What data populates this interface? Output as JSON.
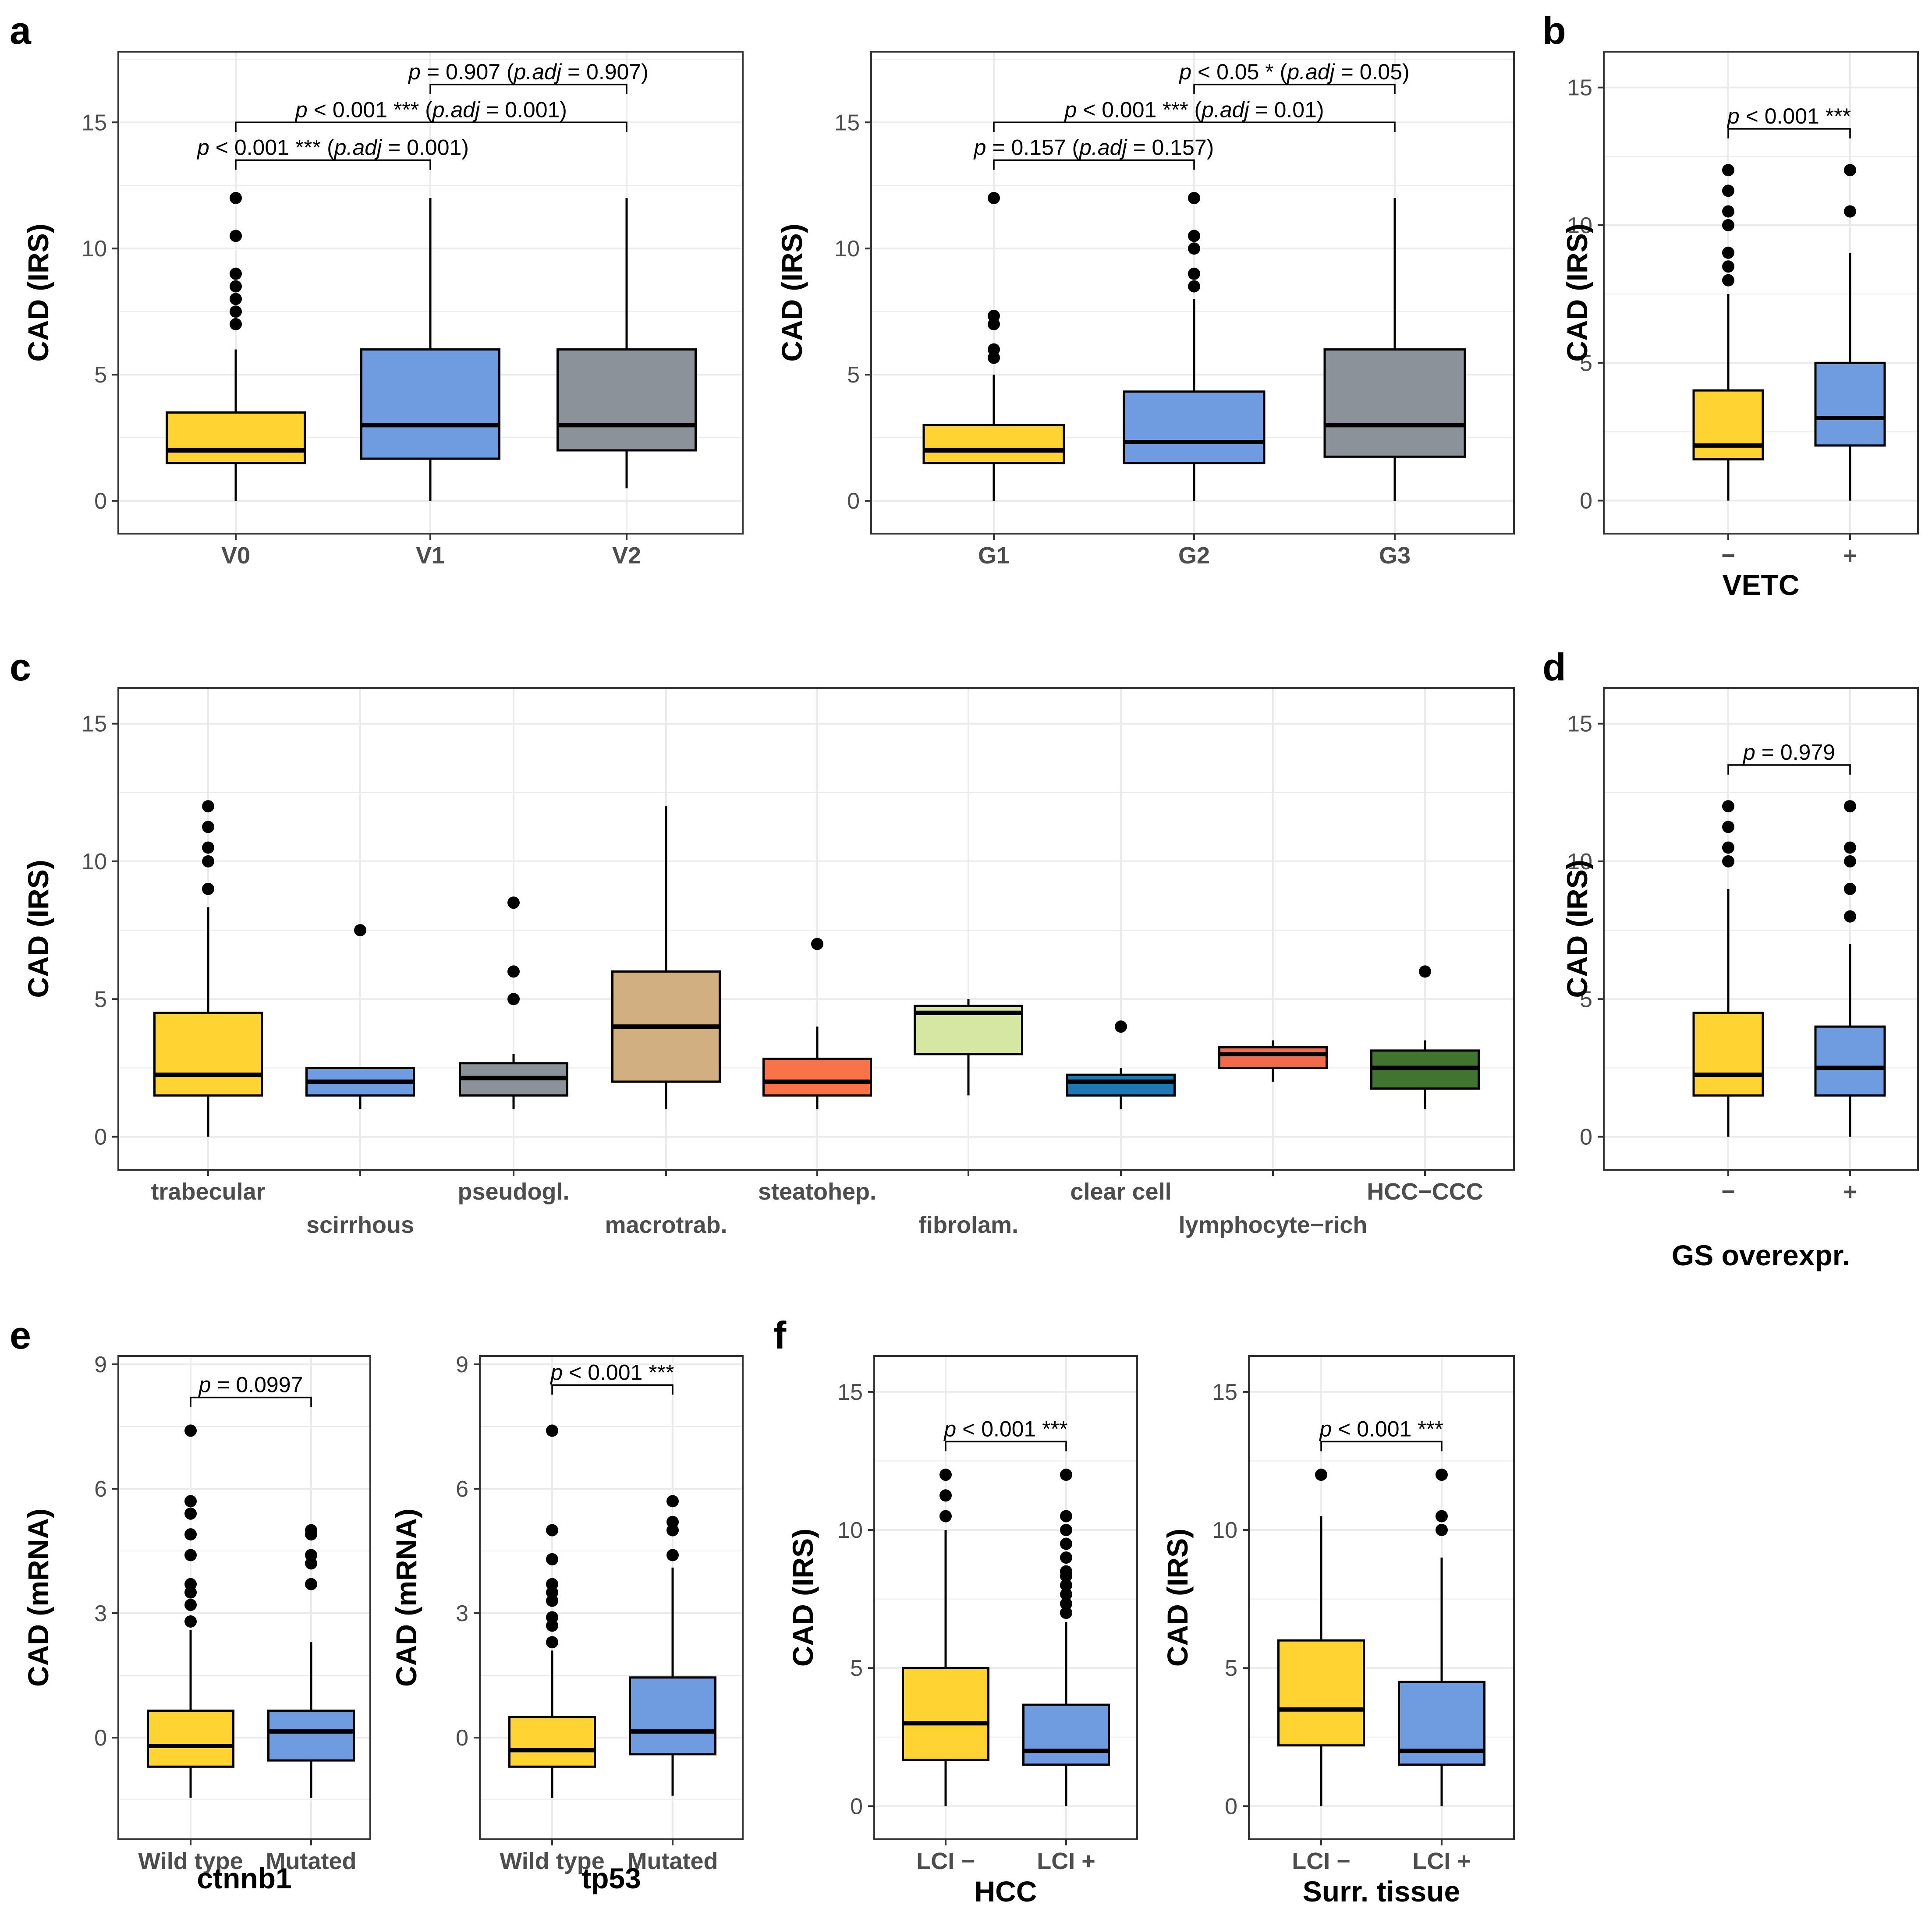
{
  "colors": {
    "yellow": "#FFD432",
    "blue": "#6F9BE0",
    "grey": "#8C9299",
    "tan": "#D2AF80",
    "orange": "#F97349",
    "lightgreen": "#D6E7A3",
    "steelblue": "#1F78B4",
    "red": "#F26A4A",
    "darkgreen": "#41752F",
    "grid": "#EBEBEB",
    "border": "#333333"
  },
  "chart_data": [
    {
      "id": "a1",
      "panel_label": "a",
      "type": "box",
      "ylabel": "CAD (IRS)",
      "xlabel": "",
      "ylim": [
        -1.3,
        17.8
      ],
      "yticks": [
        0,
        5,
        10,
        15
      ],
      "categories": [
        "V0",
        "V1",
        "V2"
      ],
      "colors": [
        "yellow",
        "blue",
        "grey"
      ],
      "boxes": [
        {
          "min": 0,
          "q1": 1.5,
          "median": 2,
          "q3": 3.5,
          "max": 6,
          "outliers": [
            7,
            7.5,
            8,
            8.5,
            9,
            10.5,
            12
          ]
        },
        {
          "min": 0,
          "q1": 1.67,
          "median": 3,
          "q3": 6,
          "max": 12,
          "outliers": []
        },
        {
          "min": 0.5,
          "q1": 2,
          "median": 3,
          "q3": 6,
          "max": 12,
          "outliers": []
        }
      ],
      "comparisons": [
        {
          "from": 0,
          "to": 1,
          "y": 13.5,
          "p": "p",
          "pre": "",
          "mid": " < 0.001 *** (",
          "adj": "p.adj",
          "post": " = 0.001)"
        },
        {
          "from": 0,
          "to": 2,
          "y": 15.0,
          "p": "p",
          "pre": "",
          "mid": " < 0.001 *** (",
          "adj": "p.adj",
          "post": " = 0.001)"
        },
        {
          "from": 1,
          "to": 2,
          "y": 16.5,
          "p": "p",
          "pre": "",
          "mid": " = 0.907 (",
          "adj": "p.adj",
          "post": " = 0.907)"
        }
      ]
    },
    {
      "id": "a2",
      "panel_label": "",
      "type": "box",
      "ylabel": "CAD (IRS)",
      "xlabel": "",
      "ylim": [
        -1.3,
        17.8
      ],
      "yticks": [
        0,
        5,
        10,
        15
      ],
      "categories": [
        "G1",
        "G2",
        "G3"
      ],
      "colors": [
        "yellow",
        "blue",
        "grey"
      ],
      "boxes": [
        {
          "min": 0,
          "q1": 1.5,
          "median": 2,
          "q3": 3,
          "max": 5,
          "outliers": [
            5.67,
            6,
            7,
            7.33,
            12
          ]
        },
        {
          "min": 0,
          "q1": 1.5,
          "median": 2.33,
          "q3": 4.33,
          "max": 8,
          "outliers": [
            8.5,
            9,
            10,
            10.5,
            12
          ]
        },
        {
          "min": 0,
          "q1": 1.75,
          "median": 3,
          "q3": 6,
          "max": 12,
          "outliers": []
        }
      ],
      "comparisons": [
        {
          "from": 0,
          "to": 1,
          "y": 13.5,
          "p": "p",
          "pre": "",
          "mid": " = 0.157 (",
          "adj": "p.adj",
          "post": " = 0.157)"
        },
        {
          "from": 0,
          "to": 2,
          "y": 15.0,
          "p": "p",
          "pre": "",
          "mid": " < 0.001 *** (",
          "adj": "p.adj",
          "post": " = 0.01)"
        },
        {
          "from": 1,
          "to": 2,
          "y": 16.5,
          "p": "p",
          "pre": "",
          "mid": " < 0.05 * (",
          "adj": "p.adj",
          "post": " = 0.05)"
        }
      ]
    },
    {
      "id": "b",
      "panel_label": "b",
      "type": "box",
      "ylabel": "CAD (IRS)",
      "xlabel": "VETC",
      "ylim": [
        -1.2,
        16.3
      ],
      "yticks": [
        0,
        5,
        10,
        15
      ],
      "categories": [
        "−",
        "+"
      ],
      "colors": [
        "yellow",
        "blue"
      ],
      "boxes": [
        {
          "min": 0,
          "q1": 1.5,
          "median": 2,
          "q3": 4,
          "max": 7.5,
          "outliers": [
            8,
            8.5,
            9,
            10,
            10.5,
            11.25,
            12
          ]
        },
        {
          "min": 0,
          "q1": 2,
          "median": 3,
          "q3": 5,
          "max": 9,
          "outliers": [
            10.5,
            12
          ]
        }
      ],
      "comparisons": [
        {
          "from": 0,
          "to": 1,
          "y": 13.5,
          "p": "p",
          "pre": "",
          "mid": " < 0.001 ***",
          "adj": "",
          "post": ""
        }
      ]
    },
    {
      "id": "c",
      "panel_label": "c",
      "type": "box",
      "ylabel": "CAD (IRS)",
      "xlabel": "",
      "ylim": [
        -1.2,
        16.3
      ],
      "yticks": [
        0,
        5,
        10,
        15
      ],
      "categories": [
        "trabecular",
        "scirrhous",
        "pseudogl.",
        "macrotrab.",
        "steatohep.",
        "fibrolam.",
        "clear cell",
        "lymphocyte−rich",
        "HCC−CCC"
      ],
      "colors": [
        "yellow",
        "blue",
        "grey",
        "tan",
        "orange",
        "lightgreen",
        "steelblue",
        "red",
        "darkgreen"
      ],
      "boxes": [
        {
          "min": 0,
          "q1": 1.5,
          "median": 2.25,
          "q3": 4.5,
          "max": 8.33,
          "outliers": [
            9,
            10,
            10.5,
            11.25,
            12
          ]
        },
        {
          "min": 1,
          "q1": 1.5,
          "median": 2,
          "q3": 2.5,
          "max": 2.5,
          "outliers": [
            7.5
          ]
        },
        {
          "min": 1,
          "q1": 1.5,
          "median": 2.13,
          "q3": 2.67,
          "max": 3,
          "outliers": [
            5,
            6,
            8.5
          ]
        },
        {
          "min": 1,
          "q1": 2,
          "median": 4,
          "q3": 6,
          "max": 12,
          "outliers": []
        },
        {
          "min": 1,
          "q1": 1.5,
          "median": 2,
          "q3": 2.83,
          "max": 4,
          "outliers": [
            7
          ]
        },
        {
          "min": 1.5,
          "q1": 3,
          "median": 4.5,
          "q3": 4.75,
          "max": 5,
          "outliers": []
        },
        {
          "min": 1,
          "q1": 1.5,
          "median": 2,
          "q3": 2.25,
          "max": 2.5,
          "outliers": [
            4
          ]
        },
        {
          "min": 2,
          "q1": 2.5,
          "median": 3,
          "q3": 3.25,
          "max": 3.5,
          "outliers": []
        },
        {
          "min": 1,
          "q1": 1.75,
          "median": 2.5,
          "q3": 3.13,
          "max": 3.5,
          "outliers": [
            6
          ]
        }
      ],
      "comparisons": []
    },
    {
      "id": "d",
      "panel_label": "d",
      "type": "box",
      "ylabel": "CAD (IRS)",
      "xlabel": "GS overexpr.",
      "ylim": [
        -1.2,
        16.3
      ],
      "yticks": [
        0,
        5,
        10,
        15
      ],
      "categories": [
        "−",
        "+"
      ],
      "colors": [
        "yellow",
        "blue"
      ],
      "boxes": [
        {
          "min": 0,
          "q1": 1.5,
          "median": 2.25,
          "q3": 4.5,
          "max": 9,
          "outliers": [
            10,
            10.5,
            11.25,
            12
          ]
        },
        {
          "min": 0,
          "q1": 1.5,
          "median": 2.5,
          "q3": 4,
          "max": 7,
          "outliers": [
            8,
            9,
            10,
            10.5,
            12
          ]
        }
      ],
      "comparisons": [
        {
          "from": 0,
          "to": 1,
          "y": 13.5,
          "p": "p",
          "pre": "",
          "mid": " = 0.979",
          "adj": "",
          "post": ""
        }
      ]
    },
    {
      "id": "e1",
      "panel_label": "e",
      "type": "box",
      "ylabel": "CAD (mRNA)",
      "xlabel": "ctnnb1",
      "ylim": [
        -2.45,
        9.2
      ],
      "yticks": [
        0,
        3,
        6,
        9
      ],
      "categories": [
        "Wild type",
        "Mutated"
      ],
      "colors": [
        "yellow",
        "blue"
      ],
      "boxes": [
        {
          "min": -1.45,
          "q1": -0.7,
          "median": -0.2,
          "q3": 0.65,
          "max": 2.6,
          "outliers": [
            2.8,
            3.2,
            3.5,
            3.7,
            4.4,
            4.9,
            5.4,
            5.7,
            7.4
          ]
        },
        {
          "min": -1.45,
          "q1": -0.55,
          "median": 0.15,
          "q3": 0.65,
          "max": 2.3,
          "outliers": [
            3.7,
            4.2,
            4.4,
            4.9,
            5.0
          ]
        }
      ],
      "comparisons": [
        {
          "from": 0,
          "to": 1,
          "y": 8.2,
          "p": "p",
          "pre": "",
          "mid": " = 0.0997",
          "adj": "",
          "post": ""
        }
      ]
    },
    {
      "id": "e2",
      "panel_label": "",
      "type": "box",
      "ylabel": "CAD (mRNA)",
      "xlabel": "tp53",
      "ylim": [
        -2.45,
        9.2
      ],
      "yticks": [
        0,
        3,
        6,
        9
      ],
      "categories": [
        "Wild type",
        "Mutated"
      ],
      "colors": [
        "yellow",
        "blue"
      ],
      "boxes": [
        {
          "min": -1.45,
          "q1": -0.7,
          "median": -0.3,
          "q3": 0.5,
          "max": 2.1,
          "outliers": [
            2.3,
            2.7,
            2.9,
            3.3,
            3.5,
            3.7,
            4.3,
            5.0,
            7.4
          ]
        },
        {
          "min": -1.4,
          "q1": -0.4,
          "median": 0.15,
          "q3": 1.45,
          "max": 4.1,
          "outliers": [
            4.4,
            5.0,
            5.2,
            5.7
          ]
        }
      ],
      "comparisons": [
        {
          "from": 0,
          "to": 1,
          "y": 8.5,
          "p": "p",
          "pre": "",
          "mid": " < 0.001 ***",
          "adj": "",
          "post": ""
        }
      ]
    },
    {
      "id": "f1",
      "panel_label": "f",
      "type": "box",
      "ylabel": "CAD (IRS)",
      "xlabel": "HCC",
      "ylim": [
        -1.2,
        16.3
      ],
      "yticks": [
        0,
        5,
        10,
        15
      ],
      "categories": [
        "LCI −",
        "LCI +"
      ],
      "colors": [
        "yellow",
        "blue"
      ],
      "boxes": [
        {
          "min": 0,
          "q1": 1.67,
          "median": 3,
          "q3": 5,
          "max": 10,
          "outliers": [
            10.5,
            11.25,
            12
          ]
        },
        {
          "min": 0,
          "q1": 1.5,
          "median": 2,
          "q3": 3.67,
          "max": 6.67,
          "outliers": [
            7,
            7.33,
            7.67,
            8,
            8.33,
            8.5,
            9,
            9.5,
            10,
            10.5,
            12
          ]
        }
      ],
      "comparisons": [
        {
          "from": 0,
          "to": 1,
          "y": 13.2,
          "p": "p",
          "pre": "",
          "mid": " < 0.001 ***",
          "adj": "",
          "post": ""
        }
      ]
    },
    {
      "id": "f2",
      "panel_label": "",
      "type": "box",
      "ylabel": "CAD (IRS)",
      "xlabel": "Surr. tissue",
      "ylim": [
        -1.2,
        16.3
      ],
      "yticks": [
        0,
        5,
        10,
        15
      ],
      "categories": [
        "LCI −",
        "LCI +"
      ],
      "colors": [
        "yellow",
        "blue"
      ],
      "boxes": [
        {
          "min": 0,
          "q1": 2.2,
          "median": 3.5,
          "q3": 6,
          "max": 10.5,
          "outliers": [
            12
          ]
        },
        {
          "min": 0,
          "q1": 1.5,
          "median": 2,
          "q3": 4.5,
          "max": 9,
          "outliers": [
            10,
            10.5,
            12
          ]
        }
      ],
      "comparisons": [
        {
          "from": 0,
          "to": 1,
          "y": 13.2,
          "p": "p",
          "pre": "",
          "mid": " < 0.001 ***",
          "adj": "",
          "post": ""
        }
      ]
    }
  ]
}
